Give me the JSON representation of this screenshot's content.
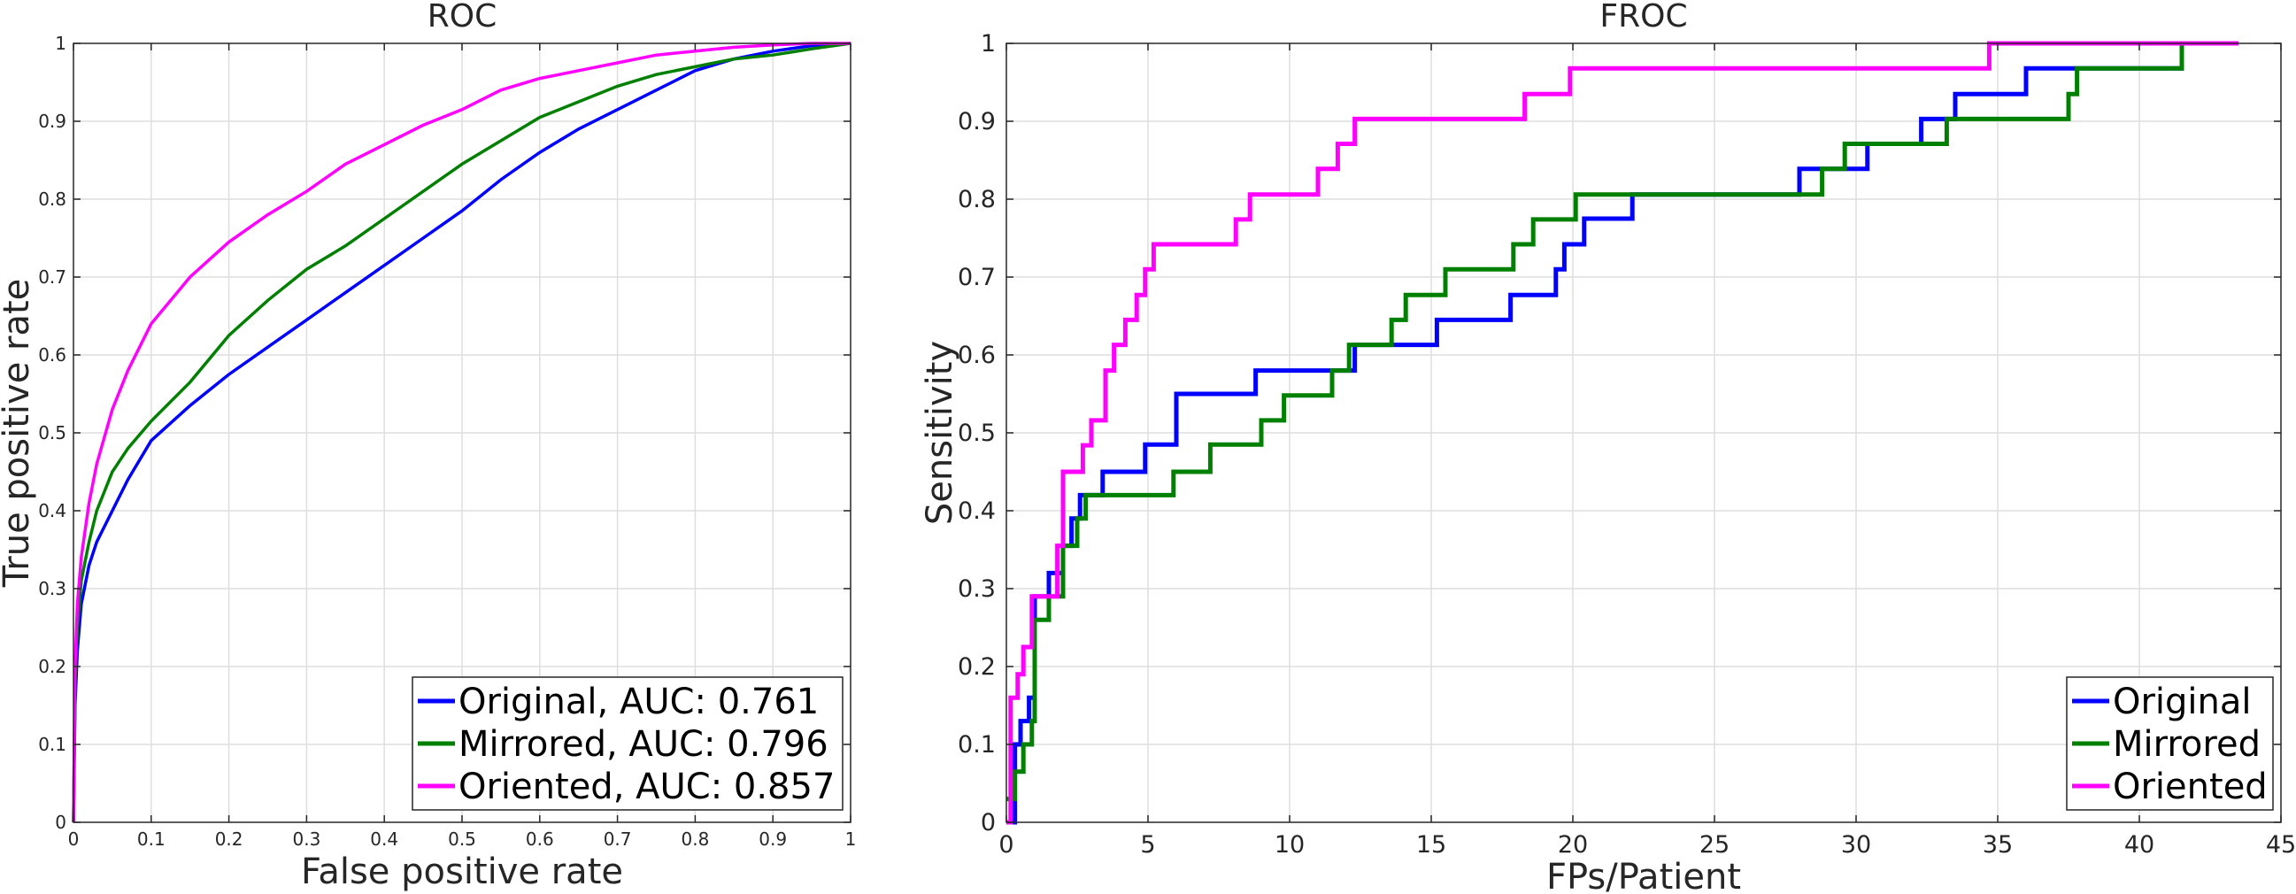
{
  "chart_data": [
    {
      "type": "line",
      "title": "ROC",
      "xlabel": "False positive rate",
      "ylabel": "True positive rate",
      "xlim": [
        0,
        1
      ],
      "ylim": [
        0,
        1
      ],
      "grid": true,
      "legend_location": "bottom-right",
      "xticks": [
        "0",
        "0.1",
        "0.2",
        "0.3",
        "0.4",
        "0.5",
        "0.6",
        "0.7",
        "0.8",
        "0.9",
        "1"
      ],
      "yticks": [
        "0",
        "0.1",
        "0.2",
        "0.3",
        "0.4",
        "0.5",
        "0.6",
        "0.7",
        "0.8",
        "0.9",
        "1"
      ],
      "series": [
        {
          "name": "Original, AUC: 0.761",
          "color": "#0000ff",
          "x": [
            0,
            0.002,
            0.005,
            0.01,
            0.02,
            0.03,
            0.05,
            0.07,
            0.1,
            0.15,
            0.2,
            0.25,
            0.3,
            0.35,
            0.4,
            0.45,
            0.5,
            0.55,
            0.6,
            0.65,
            0.7,
            0.75,
            0.8,
            0.85,
            0.9,
            0.95,
            1
          ],
          "y": [
            0,
            0.15,
            0.22,
            0.28,
            0.33,
            0.36,
            0.4,
            0.44,
            0.49,
            0.535,
            0.575,
            0.61,
            0.645,
            0.68,
            0.715,
            0.75,
            0.785,
            0.825,
            0.86,
            0.89,
            0.915,
            0.94,
            0.965,
            0.98,
            0.99,
            0.997,
            1
          ]
        },
        {
          "name": "Mirrored, AUC: 0.796",
          "color": "#008000",
          "x": [
            0,
            0.002,
            0.005,
            0.01,
            0.02,
            0.03,
            0.05,
            0.07,
            0.1,
            0.15,
            0.2,
            0.25,
            0.3,
            0.35,
            0.4,
            0.45,
            0.5,
            0.55,
            0.6,
            0.65,
            0.7,
            0.75,
            0.8,
            0.85,
            0.9,
            0.95,
            1
          ],
          "y": [
            0,
            0.18,
            0.25,
            0.31,
            0.36,
            0.4,
            0.45,
            0.48,
            0.515,
            0.565,
            0.625,
            0.67,
            0.71,
            0.74,
            0.775,
            0.81,
            0.845,
            0.875,
            0.905,
            0.925,
            0.945,
            0.96,
            0.97,
            0.98,
            0.985,
            0.993,
            1
          ]
        },
        {
          "name": "Oriented, AUC: 0.857",
          "color": "#ff00ff",
          "x": [
            0,
            0.002,
            0.005,
            0.01,
            0.02,
            0.03,
            0.05,
            0.07,
            0.1,
            0.15,
            0.2,
            0.25,
            0.3,
            0.35,
            0.4,
            0.45,
            0.5,
            0.55,
            0.6,
            0.65,
            0.7,
            0.75,
            0.8,
            0.85,
            0.9,
            0.95,
            1
          ],
          "y": [
            0,
            0.2,
            0.28,
            0.34,
            0.41,
            0.46,
            0.53,
            0.58,
            0.64,
            0.7,
            0.745,
            0.78,
            0.81,
            0.845,
            0.87,
            0.895,
            0.915,
            0.94,
            0.955,
            0.965,
            0.975,
            0.985,
            0.99,
            0.995,
            0.998,
            1,
            1
          ]
        }
      ]
    },
    {
      "type": "line",
      "title": "FROC",
      "xlabel": "FPs/Patient",
      "ylabel": "Sensitivity",
      "xlim": [
        0,
        45
      ],
      "ylim": [
        0,
        1
      ],
      "grid": true,
      "legend_location": "bottom-right",
      "xticks": [
        "0",
        "5",
        "10",
        "15",
        "20",
        "25",
        "30",
        "35",
        "40",
        "45"
      ],
      "yticks": [
        "0",
        "0.1",
        "0.2",
        "0.3",
        "0.4",
        "0.5",
        "0.6",
        "0.7",
        "0.8",
        "0.9",
        "1"
      ],
      "series": [
        {
          "name": "Original",
          "color": "#0000ff",
          "step": true,
          "x": [
            0,
            0.3,
            0.5,
            0.8,
            1.0,
            1.5,
            2.0,
            2.3,
            2.6,
            3.4,
            4.9,
            6.0,
            8.8,
            12.3,
            15.2,
            17.8,
            19.4,
            19.7,
            20.4,
            22.1,
            28.0,
            30.4,
            32.3,
            33.5,
            36.0,
            37.7,
            41.5,
            43.5
          ],
          "y": [
            0,
            0.1,
            0.13,
            0.16,
            0.29,
            0.32,
            0.355,
            0.39,
            0.42,
            0.45,
            0.485,
            0.55,
            0.58,
            0.613,
            0.645,
            0.677,
            0.71,
            0.742,
            0.775,
            0.806,
            0.839,
            0.871,
            0.903,
            0.935,
            0.968,
            0.968,
            1,
            1
          ]
        },
        {
          "name": "Mirrored",
          "color": "#008000",
          "step": true,
          "x": [
            0,
            0.3,
            0.6,
            0.9,
            1.0,
            1.5,
            2.0,
            2.5,
            2.8,
            5.9,
            7.2,
            9.0,
            9.8,
            11.5,
            12.1,
            13.6,
            14.1,
            15.5,
            17.9,
            18.6,
            20.1,
            28.8,
            29.6,
            33.2,
            37.5,
            37.8,
            41.5,
            43.5
          ],
          "y": [
            0.03,
            0.065,
            0.1,
            0.13,
            0.26,
            0.29,
            0.355,
            0.39,
            0.42,
            0.45,
            0.485,
            0.516,
            0.548,
            0.58,
            0.613,
            0.645,
            0.677,
            0.71,
            0.742,
            0.774,
            0.806,
            0.839,
            0.871,
            0.903,
            0.935,
            0.968,
            1,
            1
          ]
        },
        {
          "name": "Oriented",
          "color": "#ff00ff",
          "step": true,
          "x": [
            0,
            0.15,
            0.4,
            0.6,
            0.9,
            1.8,
            2.0,
            2.4,
            2.7,
            3.0,
            3.5,
            3.8,
            4.2,
            4.6,
            4.9,
            5.2,
            8.1,
            8.6,
            11.0,
            11.7,
            12.3,
            18.3,
            19.9,
            34.7,
            43.5
          ],
          "y": [
            0,
            0.16,
            0.19,
            0.225,
            0.29,
            0.355,
            0.45,
            0.45,
            0.484,
            0.516,
            0.58,
            0.613,
            0.645,
            0.677,
            0.71,
            0.742,
            0.774,
            0.806,
            0.839,
            0.871,
            0.903,
            0.935,
            0.968,
            1,
            1
          ]
        }
      ]
    }
  ]
}
